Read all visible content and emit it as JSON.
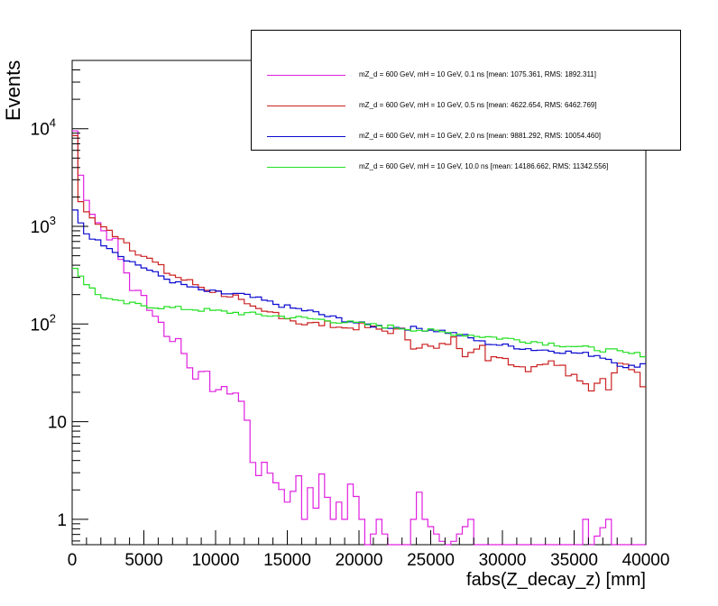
{
  "chart_data": {
    "type": "line",
    "subtype": "step-histogram",
    "xlabel": "fabs(Z_decay_z) [mm]",
    "ylabel": "Events",
    "xlim": [
      0,
      40000
    ],
    "ylim": [
      0.55,
      50000
    ],
    "yscale": "log",
    "xticks": [
      "0",
      "5000",
      "10000",
      "15000",
      "20000",
      "25000",
      "30000",
      "35000",
      "40000"
    ],
    "yticks": [
      {
        "value": 1,
        "label": "1"
      },
      {
        "value": 10,
        "label": "10"
      },
      {
        "value": 100,
        "label": "10",
        "exp": "2"
      },
      {
        "value": 1000,
        "label": "10",
        "exp": "3"
      },
      {
        "value": 10000,
        "label": "10",
        "exp": "4"
      }
    ],
    "bin_width": 400,
    "legend_position": "top-right",
    "series": [
      {
        "name": "mZ_d = 600 GeV, mH = 10 GeV, 0.1 ns [mean: 1075.361, RMS: 1892.311]",
        "color": "#e020e0",
        "anchors": [
          [
            0,
            9500
          ],
          [
            400,
            3300
          ],
          [
            800,
            2000
          ],
          [
            1200,
            1400
          ],
          [
            1600,
            1100
          ],
          [
            2000,
            900
          ],
          [
            2800,
            700
          ],
          [
            3200,
            450
          ],
          [
            3600,
            340
          ],
          [
            4000,
            230
          ],
          [
            4800,
            190
          ],
          [
            5600,
            120
          ],
          [
            6000,
            110
          ],
          [
            6400,
            72
          ],
          [
            7200,
            70
          ],
          [
            7600,
            50
          ],
          [
            8000,
            38
          ],
          [
            8400,
            30
          ],
          [
            9200,
            30
          ],
          [
            9600,
            22
          ],
          [
            10400,
            21
          ],
          [
            11200,
            20
          ],
          [
            11600,
            16
          ],
          [
            12000,
            10
          ],
          [
            12400,
            4
          ],
          [
            12800,
            3
          ],
          [
            13200,
            3.5
          ],
          [
            13600,
            3
          ],
          [
            14000,
            2.5
          ],
          [
            14400,
            2
          ],
          [
            14800,
            1.5
          ],
          [
            15200,
            2
          ],
          [
            15600,
            3
          ],
          [
            16000,
            1
          ],
          [
            16400,
            2
          ],
          [
            16800,
            1.3
          ],
          [
            17200,
            3
          ],
          [
            18000,
            1
          ],
          [
            18400,
            1.5
          ],
          [
            18800,
            1
          ],
          [
            19200,
            2.5
          ],
          [
            20000,
            1
          ],
          [
            20400,
            0.5
          ],
          [
            21200,
            1
          ],
          [
            22000,
            0.5
          ],
          [
            23200,
            0.5
          ],
          [
            23600,
            1
          ],
          [
            24000,
            2
          ],
          [
            24400,
            1
          ],
          [
            26000,
            0.5
          ],
          [
            27600,
            1
          ],
          [
            28000,
            0.5
          ],
          [
            35200,
            0.5
          ],
          [
            35600,
            1
          ],
          [
            35800,
            0.5
          ],
          [
            37200,
            1
          ],
          [
            37600,
            0.5
          ],
          [
            40000,
            0.5
          ]
        ]
      },
      {
        "name": "mZ_d = 600 GeV, mH = 10 GeV, 0.5 ns [mean: 4622.654, RMS: 6462.769]",
        "color": "#cc2222",
        "anchors": [
          [
            0,
            8000
          ],
          [
            400,
            1800
          ],
          [
            1200,
            1200
          ],
          [
            2000,
            950
          ],
          [
            3200,
            780
          ],
          [
            4000,
            600
          ],
          [
            4800,
            500
          ],
          [
            5600,
            420
          ],
          [
            6400,
            340
          ],
          [
            7200,
            300
          ],
          [
            8000,
            270
          ],
          [
            8800,
            240
          ],
          [
            10000,
            210
          ],
          [
            11200,
            190
          ],
          [
            12000,
            150
          ],
          [
            13200,
            130
          ],
          [
            14000,
            130
          ],
          [
            15200,
            110
          ],
          [
            16000,
            100
          ],
          [
            18000,
            100
          ],
          [
            18800,
            90
          ],
          [
            20000,
            95
          ],
          [
            21600,
            85
          ],
          [
            22800,
            85
          ],
          [
            23600,
            60
          ],
          [
            24400,
            60
          ],
          [
            25200,
            55
          ],
          [
            26400,
            70
          ],
          [
            27200,
            50
          ],
          [
            28000,
            60
          ],
          [
            28400,
            60
          ],
          [
            28800,
            40
          ],
          [
            29600,
            48
          ],
          [
            30800,
            38
          ],
          [
            31600,
            35
          ],
          [
            32400,
            40
          ],
          [
            33200,
            40
          ],
          [
            34000,
            40
          ],
          [
            34400,
            32
          ],
          [
            35200,
            28
          ],
          [
            36000,
            22
          ],
          [
            36800,
            28
          ],
          [
            37200,
            23
          ],
          [
            38000,
            40
          ],
          [
            38800,
            35
          ],
          [
            39200,
            30
          ],
          [
            39600,
            22
          ],
          [
            40000,
            28
          ]
        ]
      },
      {
        "name": "mZ_d = 600 GeV, mH = 10 GeV, 2.0 ns [mean: 9881.292, RMS: 10054.460]",
        "color": "#0a0ad0",
        "anchors": [
          [
            0,
            1450
          ],
          [
            800,
            850
          ],
          [
            1600,
            700
          ],
          [
            2400,
            620
          ],
          [
            3200,
            500
          ],
          [
            4000,
            430
          ],
          [
            4800,
            380
          ],
          [
            5600,
            330
          ],
          [
            6400,
            290
          ],
          [
            7200,
            260
          ],
          [
            8000,
            240
          ],
          [
            8800,
            220
          ],
          [
            10400,
            205
          ],
          [
            11600,
            200
          ],
          [
            12800,
            180
          ],
          [
            14000,
            160
          ],
          [
            15200,
            145
          ],
          [
            16400,
            135
          ],
          [
            17600,
            120
          ],
          [
            18800,
            110
          ],
          [
            20000,
            100
          ],
          [
            21200,
            95
          ],
          [
            22400,
            92
          ],
          [
            24000,
            90
          ],
          [
            25600,
            85
          ],
          [
            27200,
            75
          ],
          [
            28400,
            65
          ],
          [
            30000,
            60
          ],
          [
            32000,
            55
          ],
          [
            33600,
            53
          ],
          [
            35200,
            50
          ],
          [
            36400,
            48
          ],
          [
            37600,
            42
          ],
          [
            38400,
            35
          ],
          [
            39200,
            38
          ],
          [
            40000,
            40
          ]
        ]
      },
      {
        "name": "mZ_d = 600 GeV, mH = 10 GeV, 10.0 ns [mean: 14186.662, RMS: 11342.556]",
        "color": "#22e022",
        "anchors": [
          [
            0,
            380
          ],
          [
            800,
            260
          ],
          [
            1600,
            200
          ],
          [
            2800,
            170
          ],
          [
            4000,
            160
          ],
          [
            5600,
            150
          ],
          [
            7200,
            145
          ],
          [
            8800,
            140
          ],
          [
            10400,
            133
          ],
          [
            12000,
            128
          ],
          [
            13600,
            122
          ],
          [
            15200,
            117
          ],
          [
            16800,
            112
          ],
          [
            18400,
            106
          ],
          [
            20000,
            100
          ],
          [
            21600,
            95
          ],
          [
            23200,
            90
          ],
          [
            24800,
            85
          ],
          [
            26400,
            80
          ],
          [
            28000,
            76
          ],
          [
            29600,
            72
          ],
          [
            31200,
            68
          ],
          [
            32800,
            64
          ],
          [
            34400,
            60
          ],
          [
            36000,
            56
          ],
          [
            37600,
            53
          ],
          [
            38400,
            50
          ],
          [
            40000,
            48
          ]
        ]
      }
    ]
  },
  "legend": [
    "mZ_d = 600 GeV, mH = 10 GeV, 0.1 ns [mean: 1075.361, RMS: 1892.311]",
    "mZ_d = 600 GeV, mH = 10 GeV, 0.5 ns [mean: 4622.654, RMS: 6462.769]",
    "mZ_d = 600 GeV, mH = 10 GeV, 2.0 ns [mean: 9881.292, RMS: 10054.460]",
    "mZ_d = 600 GeV, mH = 10 GeV, 10.0 ns [mean: 14186.662, RMS: 11342.556]"
  ],
  "colors": [
    "#e020e0",
    "#cc2222",
    "#0a0ad0",
    "#22e022"
  ]
}
